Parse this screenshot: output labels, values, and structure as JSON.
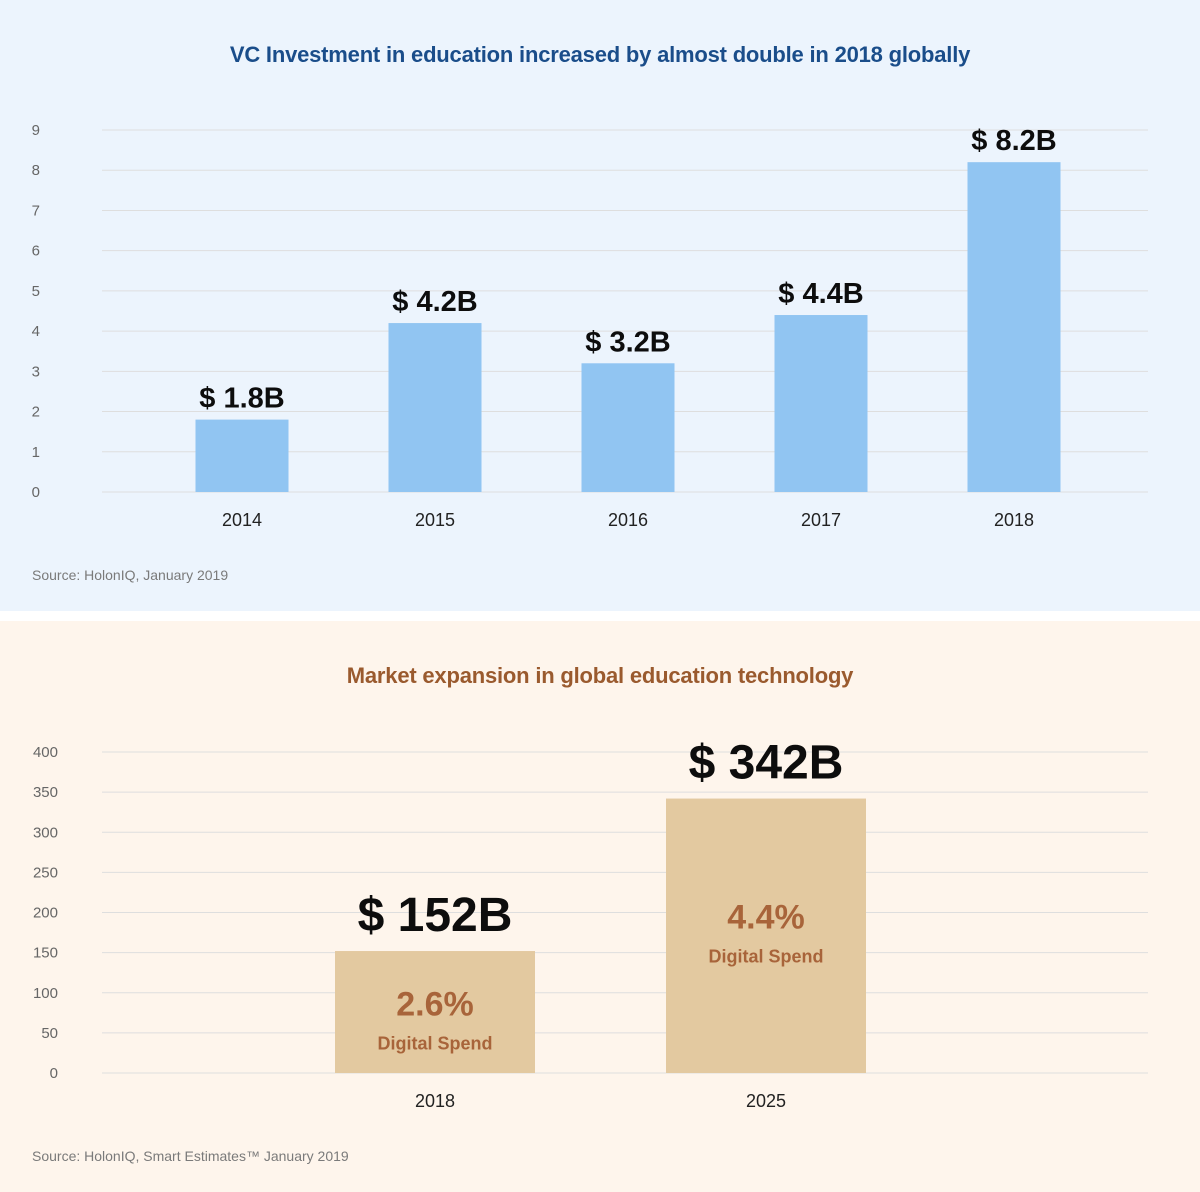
{
  "colors": {
    "top_background": "#ecf4fd",
    "top_bar": "#91c5f2",
    "top_title": "#1a4d8a",
    "bottom_background": "#fef5ec",
    "bottom_bar": "#e3c9a0",
    "bottom_title": "#9a5a2e",
    "bottom_annotation": "#a8643a",
    "gridline": "#dedede"
  },
  "chart_data": [
    {
      "type": "bar",
      "title": "VC Investment in education increased by almost double in 2018 globally",
      "categories": [
        "2014",
        "2015",
        "2016",
        "2017",
        "2018"
      ],
      "values": [
        1.8,
        4.2,
        3.2,
        4.4,
        8.2
      ],
      "data_labels": [
        "$ 1.8B",
        "$ 4.2B",
        "$ 3.2B",
        "$ 4.4B",
        "$ 8.2B"
      ],
      "y_ticks": [
        "0",
        "1",
        "2",
        "3",
        "4",
        "5",
        "6",
        "7",
        "8",
        "9"
      ],
      "ylim": [
        0,
        9
      ],
      "grid": true,
      "source": "Source: HolonIQ, January 2019"
    },
    {
      "type": "bar",
      "title": "Market expansion in global education technology",
      "categories": [
        "2018",
        "2025"
      ],
      "values": [
        152,
        342
      ],
      "data_labels": [
        "$ 152B",
        "$ 342B"
      ],
      "digital_spend_pct": [
        "2.6%",
        "4.4%"
      ],
      "digital_spend_label": "Digital Spend",
      "y_ticks": [
        "0",
        "50",
        "100",
        "150",
        "200",
        "250",
        "300",
        "350",
        "400"
      ],
      "ylim": [
        0,
        400
      ],
      "grid": true,
      "source": "Source: HolonIQ, Smart Estimates™ January 2019"
    }
  ]
}
